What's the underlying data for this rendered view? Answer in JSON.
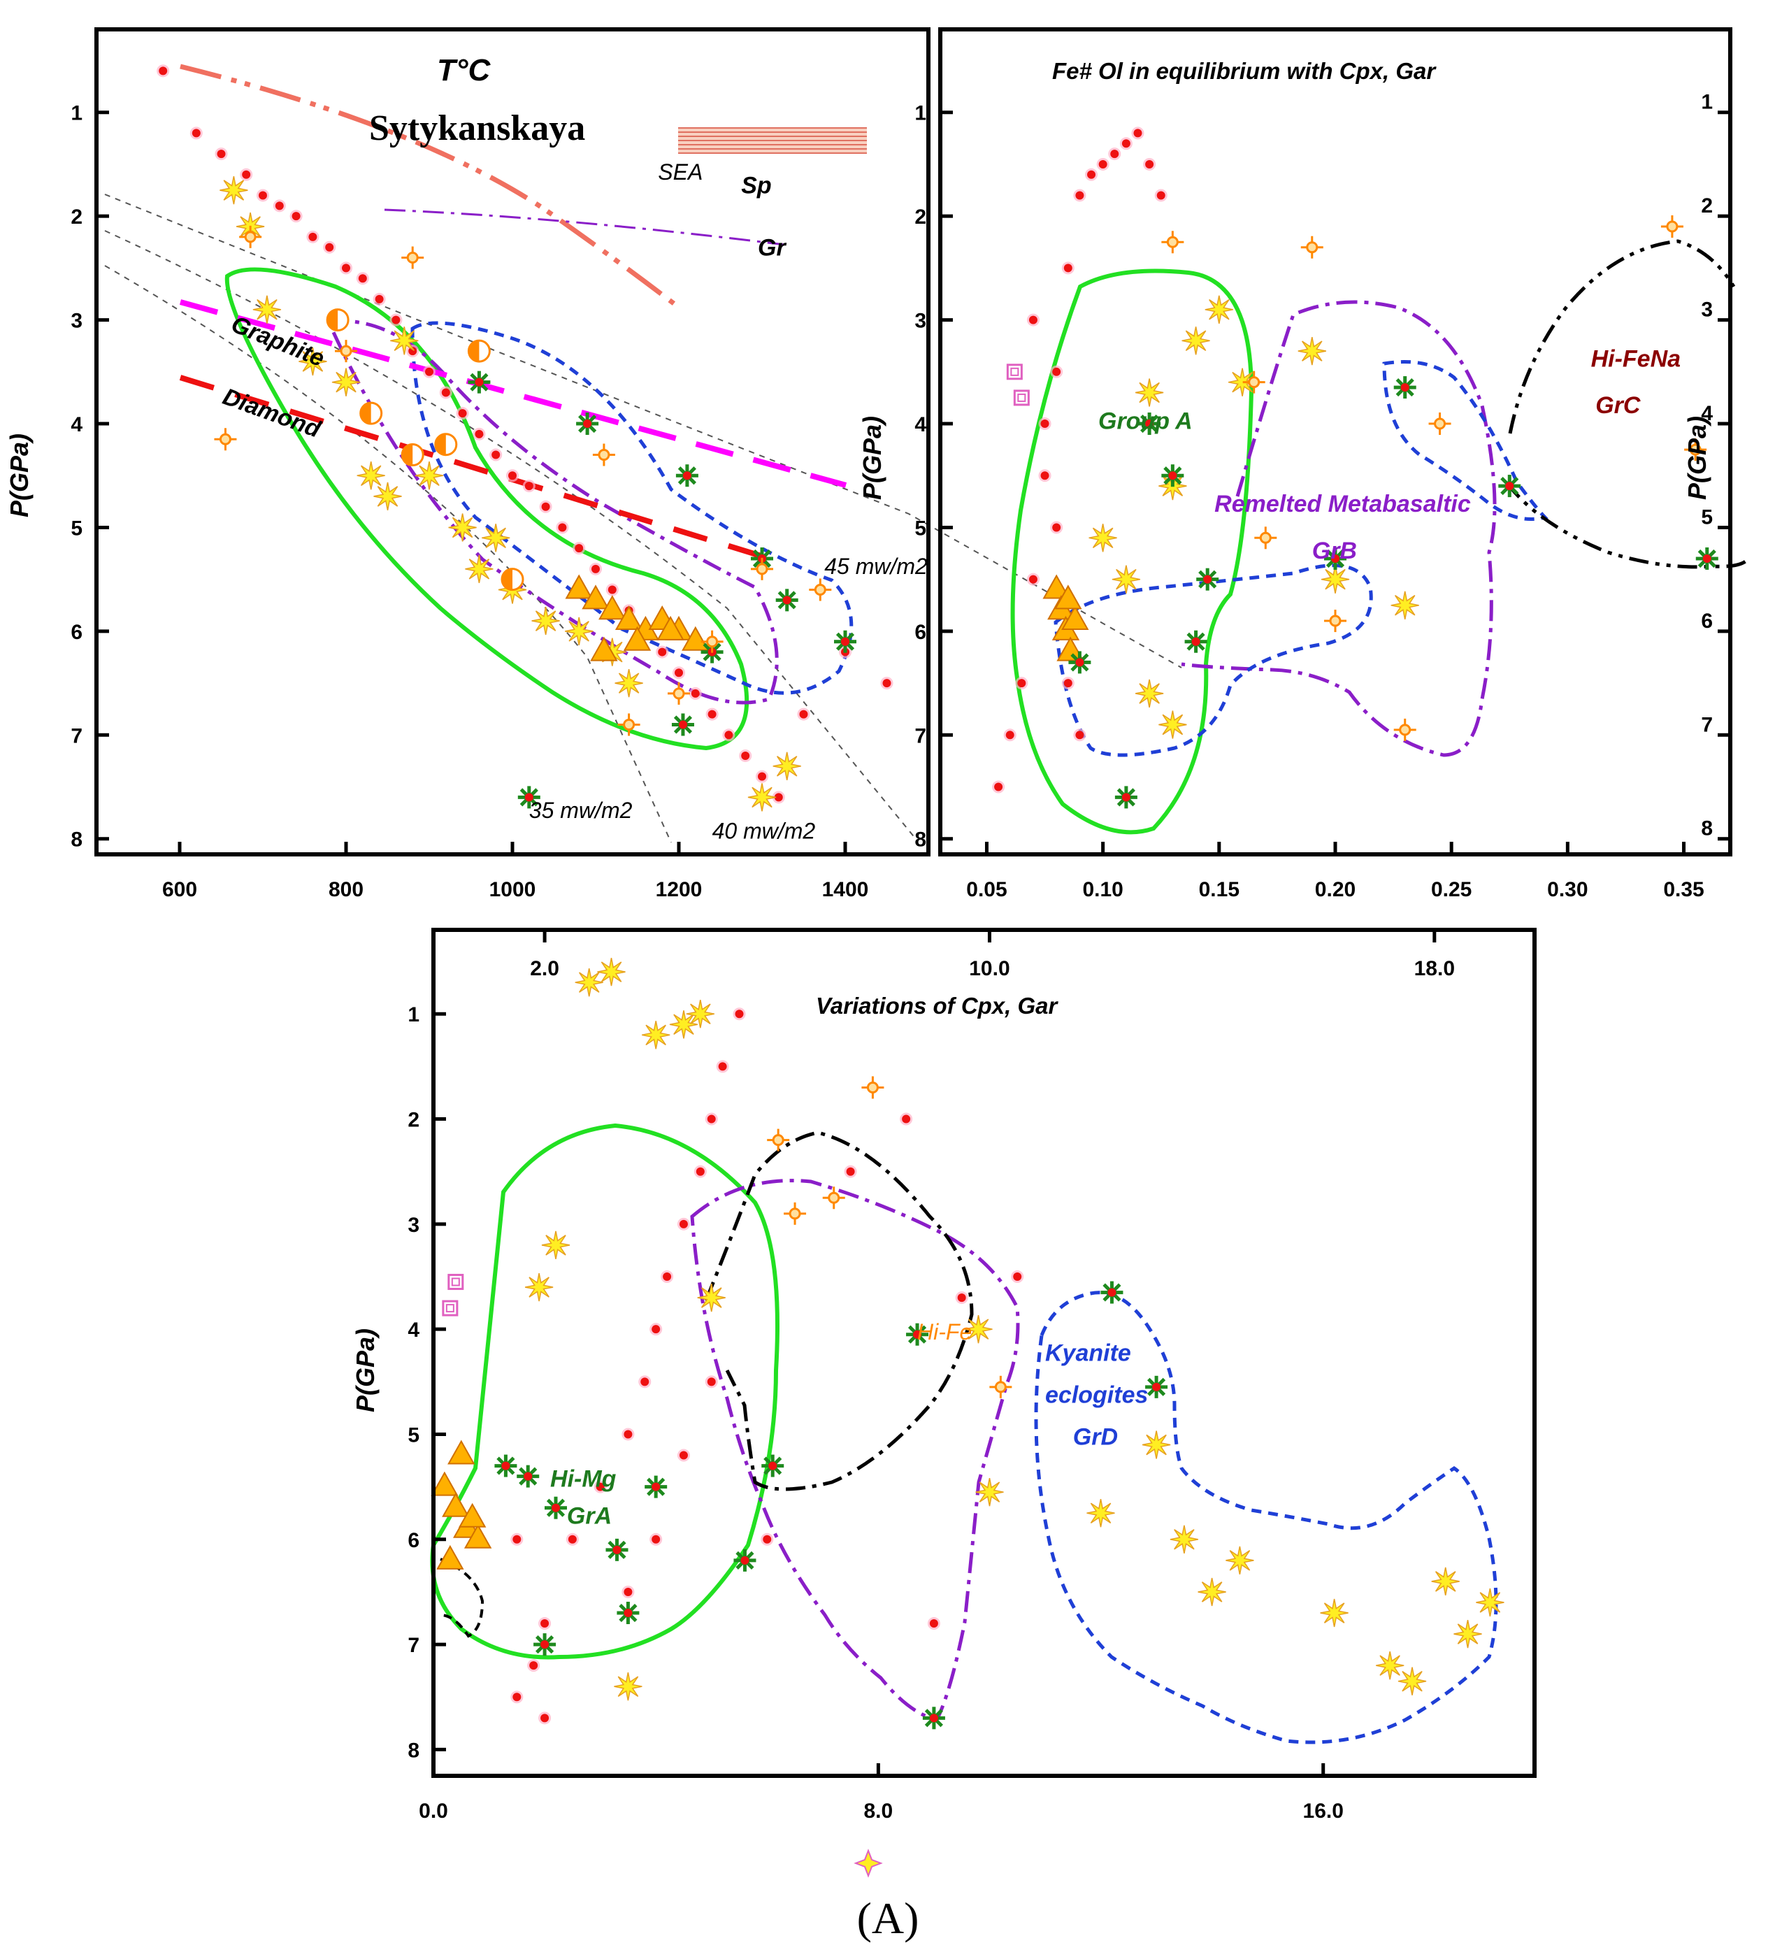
{
  "figure_label": "(A)",
  "colors": {
    "green": "#22e022",
    "blue": "#1f3fd6",
    "purple": "#8a1ec8",
    "black": "#000000",
    "magenta": "#ff00ff",
    "red": "#ee1111",
    "salmon": "#f07060",
    "point_red": "#ee1111",
    "yellow": "#ffee22",
    "orange": "#ff8800",
    "pink": "#e060c0",
    "darkred": "#8b0000",
    "darkgreen": "#1e7a1e"
  },
  "chart_data": [
    {
      "id": "pt",
      "type": "scatter",
      "title": "T°C",
      "subtitle": "Sytykanskaya",
      "xlabel": "",
      "ylabel": "P(GPa)",
      "xlim": [
        500,
        1500
      ],
      "ylim": [
        0.2,
        8.15
      ],
      "y_inverted": true,
      "xticks": [
        600,
        800,
        1000,
        1200,
        1400
      ],
      "yticks": [
        1,
        2,
        3,
        4,
        5,
        6,
        7,
        8
      ],
      "annotations": [
        {
          "text": "SEA",
          "x": 1175,
          "y": 1.65,
          "color": "#000000"
        },
        {
          "text": "Sp",
          "x": 1275,
          "y": 1.78,
          "color": "#000000"
        },
        {
          "text": "Gr",
          "x": 1295,
          "y": 2.38,
          "color": "#000000"
        },
        {
          "text": "Graphite",
          "x": 660,
          "y": 3.1,
          "color": "#000000"
        },
        {
          "text": "Diamond",
          "x": 650,
          "y": 3.8,
          "color": "#000000"
        },
        {
          "text": "45 mw/m2",
          "x": 1375,
          "y": 5.45,
          "color": "#000000"
        },
        {
          "text": "35 mw/m2",
          "x": 1020,
          "y": 7.8,
          "color": "#000000"
        },
        {
          "text": "40 mw/m2",
          "x": 1240,
          "y": 8.0,
          "color": "#000000"
        }
      ],
      "series": [
        {
          "name": "red dots",
          "marker": "dot",
          "x": [
            580,
            620,
            650,
            680,
            700,
            720,
            740,
            760,
            780,
            800,
            820,
            840,
            860,
            880,
            900,
            920,
            940,
            960,
            980,
            1000,
            1020,
            1040,
            1060,
            1080,
            1100,
            1120,
            1140,
            1160,
            1180,
            1200,
            1220,
            1240,
            1260,
            1280,
            1300,
            1320,
            1350,
            1400,
            1450
          ],
          "y": [
            0.6,
            1.2,
            1.4,
            1.6,
            1.8,
            1.9,
            2.0,
            2.2,
            2.3,
            2.5,
            2.6,
            2.8,
            3.0,
            3.3,
            3.5,
            3.7,
            3.9,
            4.1,
            4.3,
            4.5,
            4.6,
            4.8,
            5.0,
            5.2,
            5.4,
            5.6,
            5.8,
            6.0,
            6.2,
            6.4,
            6.6,
            6.8,
            7.0,
            7.2,
            7.4,
            7.6,
            6.8,
            6.2,
            6.5
          ]
        },
        {
          "name": "yellow stars",
          "marker": "star",
          "x": [
            665,
            685,
            705,
            760,
            800,
            830,
            850,
            870,
            900,
            940,
            960,
            980,
            1000,
            1040,
            1080,
            1120,
            1140,
            1300,
            1330
          ],
          "y": [
            1.75,
            2.1,
            2.9,
            3.4,
            3.6,
            4.5,
            4.7,
            3.2,
            4.5,
            5.0,
            5.4,
            5.1,
            5.6,
            5.9,
            6.0,
            6.2,
            6.5,
            7.6,
            7.3
          ]
        },
        {
          "name": "orange triangles",
          "marker": "triangle",
          "x": [
            1080,
            1100,
            1120,
            1140,
            1160,
            1180,
            1200,
            1220,
            1110,
            1150,
            1190
          ],
          "y": [
            5.6,
            5.7,
            5.8,
            5.9,
            6.0,
            5.9,
            6.0,
            6.1,
            6.2,
            6.1,
            6.0
          ]
        },
        {
          "name": "green asterisks",
          "marker": "asterisk",
          "x": [
            960,
            1090,
            1210,
            1300,
            1330,
            1400,
            1240,
            1205,
            1020
          ],
          "y": [
            3.6,
            4.0,
            4.5,
            5.3,
            5.7,
            6.1,
            6.2,
            6.9,
            7.6
          ]
        },
        {
          "name": "orange diamonds",
          "marker": "diamond",
          "x": [
            655,
            685,
            800,
            880,
            1110,
            1140,
            1200,
            1240,
            1300,
            1370
          ],
          "y": [
            4.15,
            2.2,
            3.3,
            2.4,
            4.3,
            6.9,
            6.6,
            6.1,
            5.4,
            5.6
          ]
        },
        {
          "name": "half circles",
          "marker": "halfcircle",
          "x": [
            790,
            830,
            880,
            920,
            960,
            1000
          ],
          "y": [
            3.0,
            3.9,
            4.3,
            4.2,
            3.3,
            5.5
          ]
        }
      ],
      "lines": [
        {
          "name": "Graphite-Diamond",
          "color": "#ff00ff",
          "style": "longdash",
          "x": [
            600,
            1400
          ],
          "y": [
            2.65,
            4.55
          ]
        },
        {
          "name": "red dashed",
          "color": "#ee1111",
          "style": "longdash",
          "x": [
            600,
            1300
          ],
          "y": [
            3.45,
            5.15
          ]
        },
        {
          "name": "salmon dash-dot",
          "color": "#f07060",
          "style": "dashdotdot",
          "x": [
            600,
            800,
            1000,
            1200
          ],
          "y": [
            0.35,
            0.7,
            1.4,
            2.6
          ]
        },
        {
          "name": "SEA Sp-Gr",
          "color": "#8a1ec8",
          "style": "dashdot",
          "x": [
            900,
            1100,
            1300
          ],
          "y": [
            1.7,
            1.9,
            2.15
          ]
        }
      ]
    },
    {
      "id": "fe",
      "type": "scatter",
      "title": "Fe# Ol in equilibrium  with Cpx, Gar",
      "xlabel": "",
      "ylabel": "P(GPa)",
      "xlim": [
        0.03,
        0.37
      ],
      "ylim": [
        0.2,
        8.15
      ],
      "y_inverted": true,
      "xticks": [
        "0.05",
        "0.10",
        "0.15",
        "0.20",
        "0.25",
        "0.30",
        "0.35"
      ],
      "yticks": [
        1,
        2,
        3,
        4,
        5,
        6,
        7,
        8
      ],
      "annotations": [
        {
          "text": "Group A",
          "x": 0.098,
          "y": 4.05,
          "color": "#1e7a1e"
        },
        {
          "text": "Remelted Metabasaltic",
          "x": 0.148,
          "y": 4.85,
          "color": "#8a1ec8"
        },
        {
          "text": "GrB",
          "x": 0.19,
          "y": 5.3,
          "color": "#8a1ec8"
        },
        {
          "text": "Hi-FeNa",
          "x": 0.31,
          "y": 3.45,
          "color": "#8b0000"
        },
        {
          "text": "GrC",
          "x": 0.312,
          "y": 3.9,
          "color": "#8b0000"
        }
      ],
      "series": [
        {
          "name": "red dots",
          "marker": "dot",
          "x": [
            0.055,
            0.06,
            0.065,
            0.07,
            0.075,
            0.08,
            0.085,
            0.09,
            0.095,
            0.1,
            0.105,
            0.11,
            0.115,
            0.12,
            0.125,
            0.07,
            0.075,
            0.08,
            0.085,
            0.09
          ],
          "y": [
            7.5,
            7.0,
            6.5,
            5.5,
            4.5,
            3.5,
            2.5,
            1.8,
            1.6,
            1.5,
            1.4,
            1.3,
            1.2,
            1.5,
            1.8,
            3.0,
            4.0,
            5.0,
            6.5,
            7.0
          ]
        },
        {
          "name": "yellow stars",
          "marker": "star",
          "x": [
            0.1,
            0.11,
            0.12,
            0.13,
            0.14,
            0.15,
            0.16,
            0.12,
            0.13,
            0.2,
            0.23,
            0.19
          ],
          "y": [
            5.1,
            5.5,
            3.7,
            4.6,
            3.2,
            2.9,
            3.6,
            6.6,
            6.9,
            5.5,
            5.75,
            3.3
          ]
        },
        {
          "name": "orange triangles",
          "marker": "triangle",
          "x": [
            0.08,
            0.082,
            0.084,
            0.086,
            0.088,
            0.085
          ],
          "y": [
            5.6,
            5.8,
            6.0,
            6.2,
            5.9,
            5.7
          ]
        },
        {
          "name": "green asterisks",
          "marker": "asterisk",
          "x": [
            0.09,
            0.12,
            0.13,
            0.14,
            0.145,
            0.2,
            0.23,
            0.275,
            0.36,
            0.11
          ],
          "y": [
            6.3,
            4.0,
            4.5,
            6.1,
            5.5,
            5.3,
            3.65,
            4.6,
            5.3,
            7.6
          ]
        },
        {
          "name": "orange diamonds",
          "marker": "diamond",
          "x": [
            0.13,
            0.165,
            0.17,
            0.19,
            0.2,
            0.245,
            0.23,
            0.345,
            0.355
          ],
          "y": [
            2.25,
            3.6,
            5.1,
            2.3,
            5.9,
            4.0,
            6.95,
            2.1,
            4.25
          ]
        },
        {
          "name": "pink squares",
          "marker": "square",
          "x": [
            0.062,
            0.065
          ],
          "y": [
            3.5,
            3.75
          ]
        }
      ],
      "regions": [
        {
          "name": "Group A",
          "color": "#22e022",
          "style": "solid"
        },
        {
          "name": "GrB",
          "color": "#8a1ec8",
          "style": "dashdot"
        },
        {
          "name": "blue dashed",
          "color": "#1f3fd6",
          "style": "dashed"
        },
        {
          "name": "GrC",
          "color": "#000000",
          "style": "dashdot"
        }
      ]
    },
    {
      "id": "cpx",
      "type": "scatter",
      "title": "Variations of Cpx, Gar",
      "xlabel": "",
      "ylabel": "P(GPa)",
      "xlim": [
        0,
        19.8
      ],
      "ylim": [
        0.2,
        8.25
      ],
      "y_inverted": true,
      "xticks": [
        "0.0",
        "8.0",
        "16.0"
      ],
      "xticks_top": [
        "2.0",
        "10.0",
        "18.0"
      ],
      "yticks": [
        1,
        2,
        3,
        4,
        5,
        6,
        7,
        8
      ],
      "annotations": [
        {
          "text": "Hi-Mg",
          "x": 2.1,
          "y": 5.5,
          "color": "#1e7a1e"
        },
        {
          "text": "GrA",
          "x": 2.4,
          "y": 5.85,
          "color": "#1e7a1e"
        },
        {
          "text": "Hi-Fe",
          "x": 8.7,
          "y": 4.1,
          "color": "#ff8800"
        },
        {
          "text": "Kyanite",
          "x": 11.0,
          "y": 4.3,
          "color": "#1f3fd6"
        },
        {
          "text": "eclogites",
          "x": 11.0,
          "y": 4.7,
          "color": "#1f3fd6"
        },
        {
          "text": "GrD",
          "x": 11.5,
          "y": 5.1,
          "color": "#1f3fd6"
        }
      ],
      "series": [
        {
          "name": "red dots",
          "marker": "dot",
          "x": [
            1.5,
            1.8,
            2.0,
            2.5,
            3.0,
            3.5,
            3.8,
            4.0,
            4.2,
            4.5,
            4.8,
            5.0,
            5.2,
            5.5,
            3.5,
            4.0,
            4.5,
            5.0,
            1.5,
            2.0,
            6.0,
            7.5,
            8.5,
            9.0,
            9.5,
            10.5
          ],
          "y": [
            7.5,
            7.2,
            6.8,
            6.0,
            5.5,
            5.0,
            4.5,
            4.0,
            3.5,
            3.0,
            2.5,
            2.0,
            1.5,
            1.0,
            6.5,
            6.0,
            5.2,
            4.5,
            6.0,
            7.7,
            6.0,
            2.5,
            2.0,
            6.8,
            3.7,
            3.5
          ]
        },
        {
          "name": "yellow stars",
          "marker": "star",
          "x": [
            2.8,
            3.2,
            4.0,
            4.5,
            5.0,
            4.8,
            3.5,
            1.9,
            2.2,
            12.0,
            13.0,
            13.5,
            14.0,
            14.5,
            16.2,
            17.2,
            17.6,
            18.2,
            18.6,
            19.0,
            9.8,
            10.0
          ],
          "y": [
            0.7,
            0.6,
            1.2,
            1.1,
            3.7,
            1.0,
            7.4,
            3.6,
            3.2,
            5.75,
            5.1,
            6.0,
            6.5,
            6.2,
            6.7,
            7.2,
            7.35,
            6.4,
            6.9,
            6.6,
            4.0,
            5.55
          ]
        },
        {
          "name": "orange triangles",
          "marker": "triangle",
          "x": [
            0.2,
            0.4,
            0.6,
            0.8,
            0.3,
            0.5,
            0.7
          ],
          "y": [
            5.5,
            5.7,
            5.9,
            6.0,
            6.2,
            5.2,
            5.8
          ]
        },
        {
          "name": "green asterisks",
          "marker": "asterisk",
          "x": [
            1.3,
            1.7,
            2.0,
            2.2,
            3.3,
            3.5,
            4.0,
            5.6,
            6.1,
            8.7,
            9.0,
            12.2,
            13.0
          ],
          "y": [
            5.3,
            5.4,
            7.0,
            5.7,
            6.1,
            6.7,
            5.5,
            6.2,
            5.3,
            4.05,
            7.7,
            3.65,
            4.55
          ]
        },
        {
          "name": "orange diamonds",
          "marker": "diamond",
          "x": [
            6.2,
            6.5,
            7.2,
            7.9,
            10.2
          ],
          "y": [
            2.2,
            2.9,
            2.75,
            1.7,
            4.55
          ]
        },
        {
          "name": "pink squares",
          "marker": "square",
          "x": [
            0.4,
            0.3
          ],
          "y": [
            3.55,
            3.8
          ]
        }
      ],
      "regions": [
        {
          "name": "GrA",
          "color": "#22e022",
          "style": "solid"
        },
        {
          "name": "purple",
          "color": "#8a1ec8",
          "style": "dashdot"
        },
        {
          "name": "Kyanite eclogites GrD",
          "color": "#1f3fd6",
          "style": "dashed"
        },
        {
          "name": "black",
          "color": "#000000",
          "style": "dashdot"
        }
      ]
    }
  ]
}
